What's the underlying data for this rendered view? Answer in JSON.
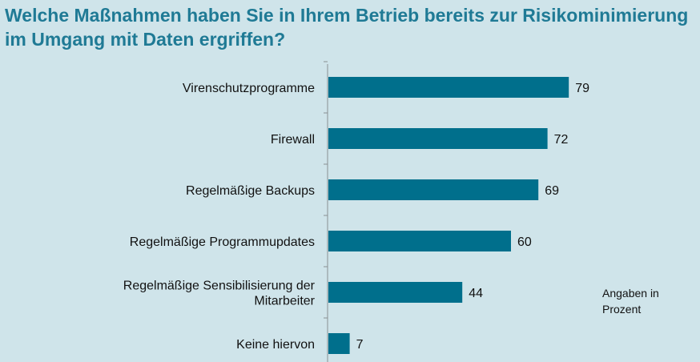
{
  "chart_data": {
    "type": "bar",
    "orientation": "horizontal",
    "title": "Welche Maßnahmen haben Sie in Ihrem Betrieb bereits zur Risikominimierung im Umgang mit Daten ergriffen?",
    "categories": [
      "Virenschutzprogramme",
      "Firewall",
      "Regelmäßige Backups",
      "Regelmäßige Programmupdates",
      "Regelmäßige Sensibilisierung der Mitarbeiter",
      "Keine hiervon"
    ],
    "values": [
      79,
      72,
      69,
      60,
      44,
      7
    ],
    "xlim": [
      0,
      100
    ],
    "grid": false,
    "bar_color": "#006f8c",
    "title_color": "#1f7a95",
    "background_color": "#cfe4ea",
    "note": "Angaben in Prozent"
  }
}
